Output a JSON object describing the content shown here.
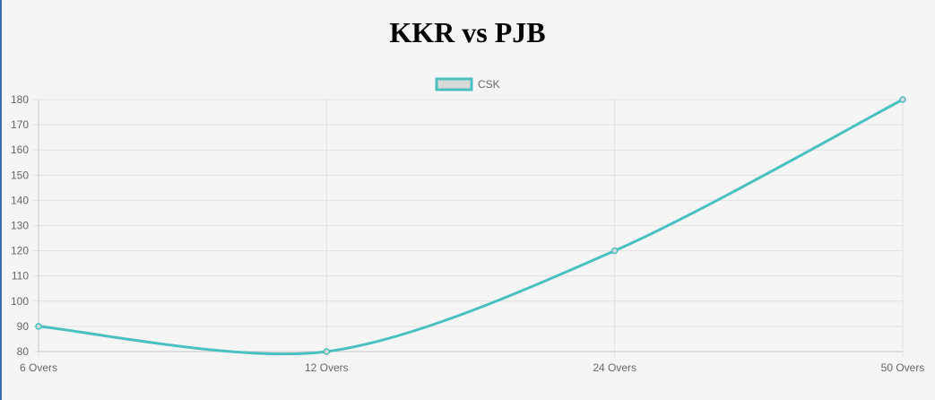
{
  "page": {
    "title": "KKR vs PJB"
  },
  "colors": {
    "line": "#4bc0c0",
    "legend_fill": "#d9d9d9",
    "grid": "#e1e1e1",
    "text": "#666666"
  },
  "chart_data": {
    "type": "line",
    "categories": [
      "6 Overs",
      "12 Overs",
      "24 Overs",
      "50 Overs"
    ],
    "series": [
      {
        "name": "CSK",
        "values": [
          90,
          80,
          120,
          180
        ]
      }
    ],
    "ylim": [
      80,
      180
    ],
    "yticks": [
      80,
      90,
      100,
      110,
      120,
      130,
      140,
      150,
      160,
      170,
      180
    ],
    "grid": true,
    "legend": "top-center"
  }
}
